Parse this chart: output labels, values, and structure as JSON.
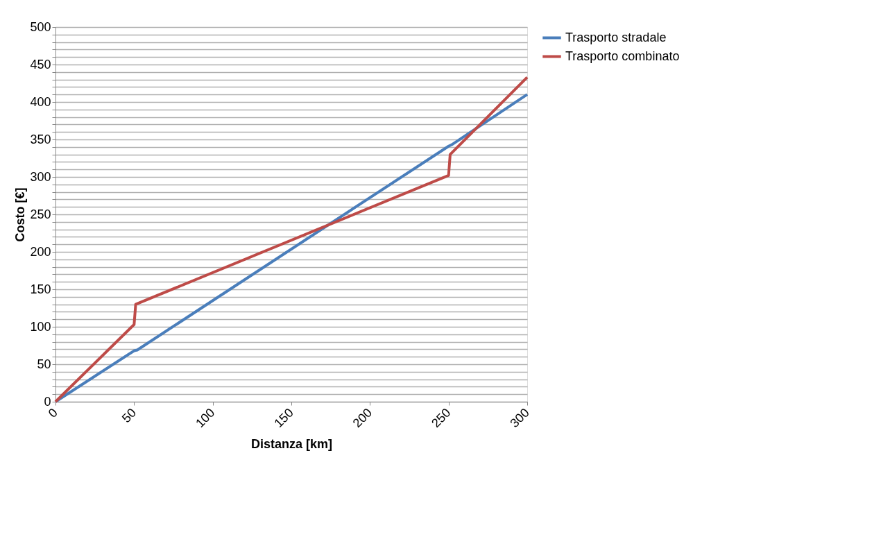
{
  "chart_data": {
    "type": "line",
    "xlabel": "Distanza [km]",
    "ylabel": "Costo [€]",
    "xlim": [
      0,
      300
    ],
    "xticks": [
      0,
      50,
      100,
      150,
      200,
      250,
      300
    ],
    "ylim": [
      0,
      500
    ],
    "yticks": [
      0,
      {
        "value": 10,
        "label": null
      },
      {
        "value": 20,
        "label": null
      },
      {
        "value": 30,
        "label": null
      },
      {
        "value": 40,
        "label": null
      },
      50,
      {
        "value": 60,
        "label": null
      },
      {
        "value": 70,
        "label": null
      },
      {
        "value": 80,
        "label": null
      },
      {
        "value": 90,
        "label": null
      },
      100,
      {
        "value": 110,
        "label": null
      },
      {
        "value": 120,
        "label": null
      },
      {
        "value": 130,
        "label": null
      },
      {
        "value": 140,
        "label": null
      },
      150,
      {
        "value": 160,
        "label": null
      },
      {
        "value": 170,
        "label": null
      },
      {
        "value": 180,
        "label": null
      },
      {
        "value": 190,
        "label": null
      },
      200,
      {
        "value": 210,
        "label": null
      },
      {
        "value": 220,
        "label": null
      },
      {
        "value": 230,
        "label": null
      },
      {
        "value": 240,
        "label": null
      },
      250,
      {
        "value": 260,
        "label": null
      },
      {
        "value": 270,
        "label": null
      },
      {
        "value": 280,
        "label": null
      },
      {
        "value": 290,
        "label": null
      },
      300,
      {
        "value": 310,
        "label": null
      },
      {
        "value": 320,
        "label": null
      },
      {
        "value": 330,
        "label": null
      },
      {
        "value": 340,
        "label": null
      },
      350,
      {
        "value": 360,
        "label": null
      },
      {
        "value": 370,
        "label": null
      },
      {
        "value": 380,
        "label": null
      },
      {
        "value": 390,
        "label": null
      },
      400,
      {
        "value": 410,
        "label": null
      },
      {
        "value": 420,
        "label": null
      },
      {
        "value": 430,
        "label": null
      },
      {
        "value": 440,
        "label": null
      },
      450,
      {
        "value": 460,
        "label": null
      },
      {
        "value": 470,
        "label": null
      },
      {
        "value": 480,
        "label": null
      },
      {
        "value": 490,
        "label": null
      },
      500
    ],
    "grid": "y",
    "legend": "right",
    "marker": "none",
    "line_style": "solid",
    "series": [
      {
        "name": "Trasporto stradale",
        "color": "#4a7ebb",
        "x": [
          0,
          50,
          52,
          250,
          252,
          300
        ],
        "values": [
          0,
          68,
          69,
          341,
          343,
          410
        ]
      },
      {
        "name": "Trasporto combinato",
        "color": "#be4b48",
        "x": [
          0,
          50,
          51,
          250,
          251,
          300
        ],
        "values": [
          0,
          103,
          130,
          302,
          330,
          433
        ]
      }
    ]
  }
}
